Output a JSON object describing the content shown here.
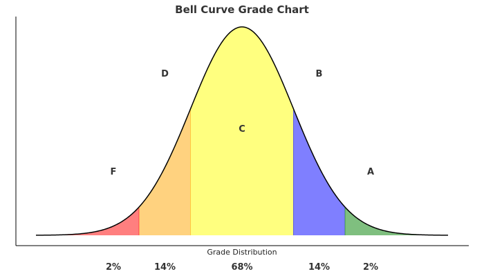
{
  "chart_data": {
    "type": "area",
    "title": "Bell Curve Grade Chart",
    "xlabel": "Grade Distribution",
    "ylabel": "",
    "distribution": {
      "mean": 0,
      "std": 1
    },
    "xlim": [
      -4,
      4
    ],
    "grid": false,
    "regions": [
      {
        "grade": "F",
        "from": -4,
        "to": -2,
        "color": "#ff0000",
        "percent": "2%"
      },
      {
        "grade": "D",
        "from": -2,
        "to": -1,
        "color": "#ffa500",
        "percent": "14%"
      },
      {
        "grade": "C",
        "from": -1,
        "to": 1,
        "color": "#ffff00",
        "percent": "68%"
      },
      {
        "grade": "B",
        "from": 1,
        "to": 2,
        "color": "#0000ff",
        "percent": "14%"
      },
      {
        "grade": "A",
        "from": 2,
        "to": 4,
        "color": "#008000",
        "percent": "2%"
      }
    ]
  }
}
